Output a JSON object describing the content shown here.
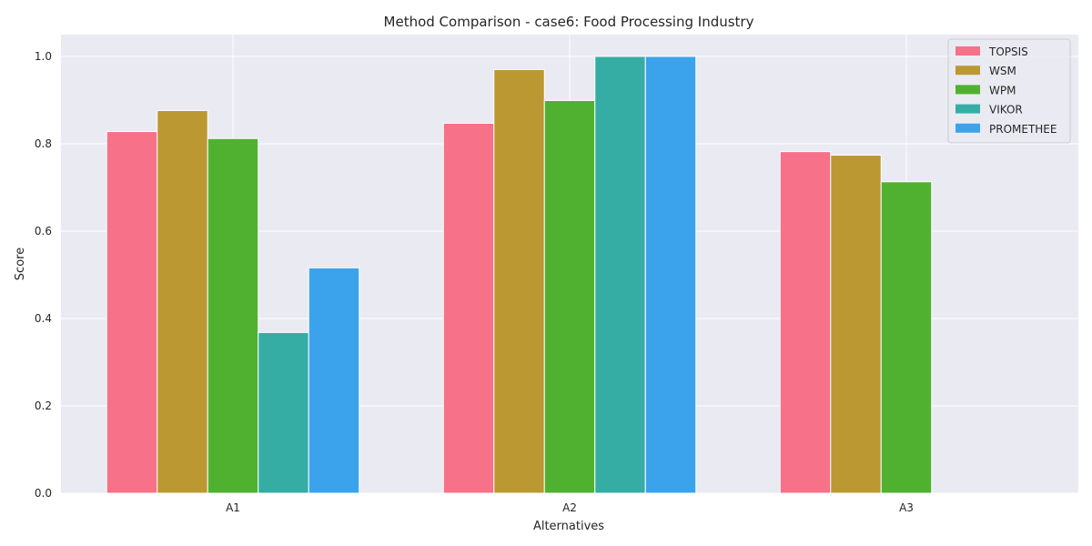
{
  "chart_data": {
    "type": "bar",
    "title": "Method Comparison - case6: Food Processing Industry",
    "xlabel": "Alternatives",
    "ylabel": "Score",
    "categories": [
      "A1",
      "A2",
      "A3"
    ],
    "ylim": [
      0,
      1.05
    ],
    "yticks": [
      "0.0",
      "0.2",
      "0.4",
      "0.6",
      "0.8",
      "1.0"
    ],
    "grid": true,
    "legend_position": "top-right",
    "series": [
      {
        "name": "TOPSIS",
        "color": "#f77189",
        "values": [
          0.828,
          0.847,
          0.782
        ]
      },
      {
        "name": "WSM",
        "color": "#bb9832",
        "values": [
          0.876,
          0.97,
          0.774
        ]
      },
      {
        "name": "WPM",
        "color": "#50b131",
        "values": [
          0.812,
          0.899,
          0.713
        ]
      },
      {
        "name": "VIKOR",
        "color": "#36ada4",
        "values": [
          0.368,
          1.0,
          0.0
        ]
      },
      {
        "name": "PROMETHEE",
        "color": "#3ba3ec",
        "values": [
          0.516,
          1.0,
          0.0
        ]
      }
    ]
  }
}
